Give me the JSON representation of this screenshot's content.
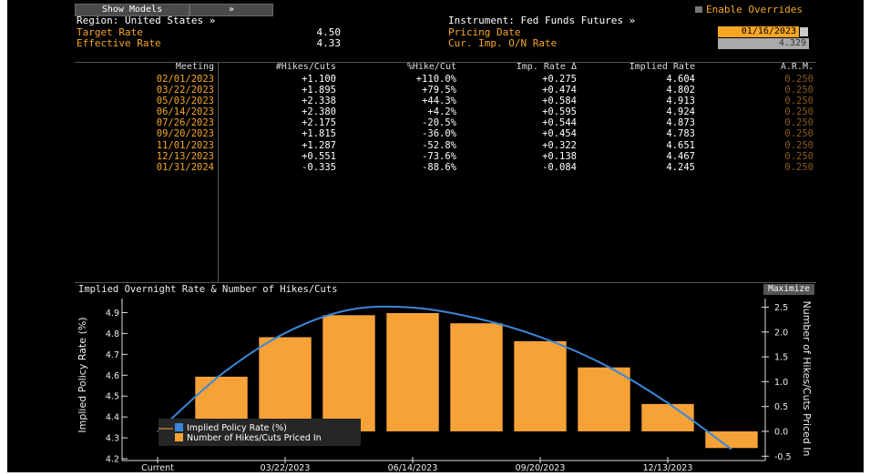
{
  "header": {
    "show_models_label": "Show Models",
    "chevron_label": "»",
    "region": "Region: United States »",
    "instrument": "Instrument: Fed Funds Futures »",
    "enable_overrides": "Enable Overrides",
    "target_rate_label": "Target Rate",
    "target_rate_value": "4.50",
    "effective_rate_label": "Effective Rate",
    "effective_rate_value": "4.33",
    "pricing_date_label": "Pricing Date",
    "pricing_date_value": "01/16/2023",
    "cur_imp_label": "Cur. Imp. O/N Rate",
    "cur_imp_value": "4.329"
  },
  "table": {
    "headers": [
      "Meeting",
      "#Hikes/Cuts",
      "%Hike/Cut",
      "Imp. Rate Δ",
      "Implied Rate",
      "A.R.M."
    ],
    "rows": [
      [
        "02/01/2023",
        "+1.100",
        "+110.0%",
        "+0.275",
        "4.604",
        "0.250"
      ],
      [
        "03/22/2023",
        "+1.895",
        "+79.5%",
        "+0.474",
        "4.802",
        "0.250"
      ],
      [
        "05/03/2023",
        "+2.338",
        "+44.3%",
        "+0.584",
        "4.913",
        "0.250"
      ],
      [
        "06/14/2023",
        "+2.380",
        "+4.2%",
        "+0.595",
        "4.924",
        "0.250"
      ],
      [
        "07/26/2023",
        "+2.175",
        "-20.5%",
        "+0.544",
        "4.873",
        "0.250"
      ],
      [
        "09/20/2023",
        "+1.815",
        "-36.0%",
        "+0.454",
        "4.783",
        "0.250"
      ],
      [
        "11/01/2023",
        "+1.287",
        "-52.8%",
        "+0.322",
        "4.651",
        "0.250"
      ],
      [
        "12/13/2023",
        "+0.551",
        "-73.6%",
        "+0.138",
        "4.467",
        "0.250"
      ],
      [
        "01/31/2024",
        "-0.335",
        "-88.6%",
        "-0.084",
        "4.245",
        "0.250"
      ]
    ]
  },
  "chart": {
    "title": "Implied Overnight Rate & Number of Hikes/Cuts",
    "maximize_label": "Maximize"
  },
  "colors": {
    "orange": "#f5a623",
    "bar": "#f7a237",
    "line": "#3b86d8",
    "background": "#000000"
  },
  "chart_data": {
    "type": "bar",
    "categories": [
      "Current",
      "02/01/2023",
      "03/22/2023",
      "05/03/2023",
      "06/14/2023",
      "07/26/2023",
      "09/20/2023",
      "11/01/2023",
      "12/13/2023",
      "01/31/2024"
    ],
    "x_tick_labels": [
      "Current",
      "03/22/2023",
      "06/14/2023",
      "09/20/2023",
      "12/13/2023"
    ],
    "series": [
      {
        "name": "Implied Policy Rate (%)",
        "type": "line",
        "axis": "left",
        "values": [
          4.329,
          4.604,
          4.802,
          4.913,
          4.924,
          4.873,
          4.783,
          4.651,
          4.467,
          4.245
        ]
      },
      {
        "name": "Number of Hikes/Cuts Priced In",
        "type": "bar",
        "axis": "right",
        "values": [
          null,
          1.1,
          1.895,
          2.338,
          2.38,
          2.175,
          1.815,
          1.287,
          0.551,
          -0.335
        ]
      }
    ],
    "ylabel": "Implied Policy Rate (%)",
    "ylabel_right": "Number of Hikes/Cuts Priced In",
    "ylim": [
      4.2,
      4.95
    ],
    "ylim_right": [
      -0.55,
      2.6
    ],
    "y_ticks": [
      "4.2",
      "4.3",
      "4.4",
      "4.5",
      "4.6",
      "4.7",
      "4.8",
      "4.9"
    ],
    "y_ticks_right": [
      "-0.5",
      "0.0",
      "0.5",
      "1.0",
      "1.5",
      "2.0",
      "2.5"
    ],
    "legend": "bottom-left",
    "grid": false
  }
}
